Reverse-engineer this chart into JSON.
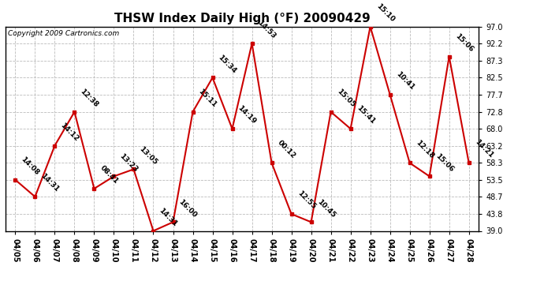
{
  "title": "THSW Index Daily High (°F) 20090429",
  "copyright": "Copyright 2009 Cartronics.com",
  "dates": [
    "04/05",
    "04/06",
    "04/07",
    "04/08",
    "04/09",
    "04/10",
    "04/11",
    "04/12",
    "04/13",
    "04/14",
    "04/15",
    "04/16",
    "04/17",
    "04/18",
    "04/19",
    "04/20",
    "04/21",
    "04/22",
    "04/23",
    "04/24",
    "04/25",
    "04/26",
    "04/27",
    "04/28"
  ],
  "values": [
    53.5,
    48.7,
    63.2,
    72.8,
    51.0,
    54.5,
    56.5,
    39.0,
    41.5,
    72.8,
    82.5,
    68.0,
    92.2,
    58.3,
    43.8,
    41.5,
    72.8,
    68.0,
    97.0,
    77.7,
    58.3,
    54.5,
    88.5,
    58.3
  ],
  "times": [
    "14:08",
    "14:31",
    "14:12",
    "12:38",
    "08:41",
    "13:23",
    "13:05",
    "14:31",
    "16:00",
    "15:11",
    "15:34",
    "14:19",
    "14:53",
    "00:12",
    "12:55",
    "10:45",
    "15:05",
    "15:41",
    "15:10",
    "10:41",
    "12:18",
    "15:06",
    "15:06",
    "14:21"
  ],
  "line_color": "#cc0000",
  "marker_color": "#cc0000",
  "background_color": "#ffffff",
  "grid_color": "#bbbbbb",
  "ylim_min": 39.0,
  "ylim_max": 97.0,
  "yticks": [
    39.0,
    43.8,
    48.7,
    53.5,
    58.3,
    63.2,
    68.0,
    72.8,
    77.7,
    82.5,
    87.3,
    92.2,
    97.0
  ],
  "title_fontsize": 11,
  "label_fontsize": 6.5,
  "axis_fontsize": 7,
  "copyright_fontsize": 6.5
}
